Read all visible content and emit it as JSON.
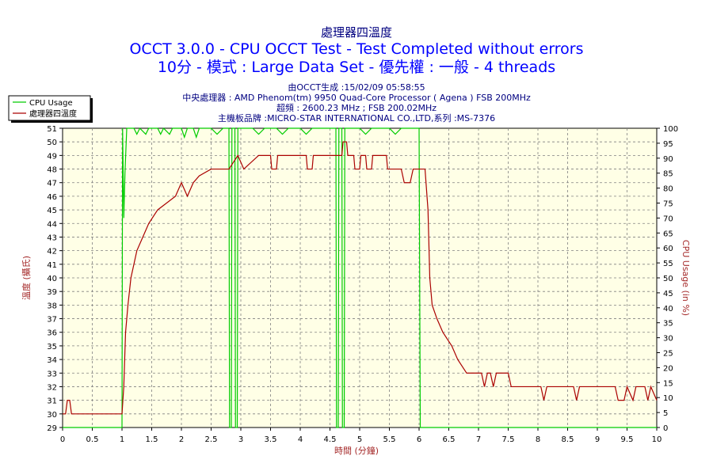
{
  "header": {
    "line1": "處理器四溫度",
    "line2": "OCCT 3.0.0 - CPU OCCT Test - Test Completed without errors",
    "line3": "10分 - 模式 : Large Data Set - 優先權 : 一般 - 4 threads",
    "info1": "由OCCT生成 :15/02/09 05:58:55",
    "info2": "中央處理器 : AMD Phenom(tm) 9950 Quad-Core Processor ( Agena ) FSB 200MHz",
    "info3": "超頻 : 2600.23 MHz ; FSB 200.02MHz",
    "info4": "主機板品牌 :MICRO-STAR INTERNATIONAL CO.,LTD,系列 :MS-7376"
  },
  "chart_data": {
    "type": "line",
    "xlabel": "時間 (分鐘)",
    "ylabel_left": "溫度 (攝氏)",
    "ylabel_right": "CPU Usage (in %)",
    "xlim": [
      0,
      10
    ],
    "ylim_left": [
      29,
      51
    ],
    "ylim_right": [
      0,
      100
    ],
    "x_ticks": [
      "0",
      "0.5",
      "1",
      "1.5",
      "2",
      "2.5",
      "3",
      "3.5",
      "4",
      "4.5",
      "5",
      "5.5",
      "6",
      "6.5",
      "7",
      "7.5",
      "8",
      "8.5",
      "9",
      "9.5",
      "10"
    ],
    "y_ticks_left": [
      "29",
      "30",
      "31",
      "32",
      "33",
      "34",
      "35",
      "36",
      "37",
      "38",
      "39",
      "40",
      "41",
      "42",
      "43",
      "44",
      "45",
      "46",
      "47",
      "48",
      "49",
      "50",
      "51"
    ],
    "y_ticks_right": [
      "0",
      "5",
      "10",
      "15",
      "20",
      "25",
      "30",
      "35",
      "40",
      "45",
      "50",
      "55",
      "60",
      "65",
      "70",
      "75",
      "80",
      "85",
      "90",
      "95",
      "100"
    ],
    "grid": true,
    "legend_position": "top-left",
    "series": [
      {
        "name": "CPU Usage",
        "axis": "right",
        "color": "#00cc00",
        "points": [
          [
            0,
            0
          ],
          [
            1.0,
            0
          ],
          [
            1.01,
            100
          ],
          [
            1.03,
            70
          ],
          [
            1.05,
            85
          ],
          [
            1.08,
            100
          ],
          [
            1.2,
            100
          ],
          [
            1.25,
            98
          ],
          [
            1.3,
            100
          ],
          [
            1.4,
            98
          ],
          [
            1.45,
            100
          ],
          [
            1.6,
            100
          ],
          [
            1.65,
            98
          ],
          [
            1.7,
            100
          ],
          [
            1.8,
            98
          ],
          [
            1.85,
            100
          ],
          [
            2.0,
            100
          ],
          [
            2.05,
            97
          ],
          [
            2.1,
            100
          ],
          [
            2.2,
            100
          ],
          [
            2.25,
            97
          ],
          [
            2.3,
            100
          ],
          [
            2.5,
            100
          ],
          [
            2.6,
            98
          ],
          [
            2.7,
            100
          ],
          [
            2.8,
            100
          ],
          [
            2.81,
            0
          ],
          [
            2.84,
            0
          ],
          [
            2.85,
            100
          ],
          [
            2.9,
            100
          ],
          [
            2.91,
            0
          ],
          [
            2.94,
            0
          ],
          [
            2.95,
            100
          ],
          [
            3.2,
            100
          ],
          [
            3.3,
            98
          ],
          [
            3.4,
            100
          ],
          [
            3.6,
            100
          ],
          [
            3.7,
            98
          ],
          [
            3.8,
            100
          ],
          [
            4.0,
            100
          ],
          [
            4.1,
            98
          ],
          [
            4.2,
            100
          ],
          [
            4.6,
            100
          ],
          [
            4.61,
            0
          ],
          [
            4.64,
            0
          ],
          [
            4.65,
            100
          ],
          [
            4.7,
            100
          ],
          [
            4.71,
            0
          ],
          [
            4.74,
            0
          ],
          [
            4.75,
            100
          ],
          [
            5.0,
            100
          ],
          [
            5.1,
            98
          ],
          [
            5.2,
            100
          ],
          [
            5.5,
            100
          ],
          [
            5.6,
            98
          ],
          [
            5.7,
            100
          ],
          [
            6.0,
            100
          ],
          [
            6.02,
            0
          ],
          [
            6.05,
            0
          ],
          [
            10,
            0
          ]
        ]
      },
      {
        "name": "處理器四溫度",
        "axis": "left",
        "color": "#aa0000",
        "points": [
          [
            0,
            30
          ],
          [
            0.05,
            30
          ],
          [
            0.08,
            31
          ],
          [
            0.12,
            31
          ],
          [
            0.15,
            30
          ],
          [
            1.0,
            30
          ],
          [
            1.03,
            32
          ],
          [
            1.06,
            36
          ],
          [
            1.1,
            38
          ],
          [
            1.15,
            40
          ],
          [
            1.2,
            41
          ],
          [
            1.25,
            42
          ],
          [
            1.35,
            43
          ],
          [
            1.45,
            44
          ],
          [
            1.6,
            45
          ],
          [
            1.9,
            46
          ],
          [
            2.0,
            47
          ],
          [
            2.1,
            46
          ],
          [
            2.2,
            47
          ],
          [
            2.3,
            47.5
          ],
          [
            2.5,
            48
          ],
          [
            2.8,
            48
          ],
          [
            2.95,
            49
          ],
          [
            3.05,
            48
          ],
          [
            3.3,
            49
          ],
          [
            3.5,
            49
          ],
          [
            3.52,
            48
          ],
          [
            3.6,
            48
          ],
          [
            3.62,
            49
          ],
          [
            4.1,
            49
          ],
          [
            4.12,
            48
          ],
          [
            4.2,
            48
          ],
          [
            4.22,
            49
          ],
          [
            4.7,
            49
          ],
          [
            4.72,
            50
          ],
          [
            4.78,
            50
          ],
          [
            4.8,
            49
          ],
          [
            4.9,
            49
          ],
          [
            4.92,
            48
          ],
          [
            5.0,
            48
          ],
          [
            5.02,
            49
          ],
          [
            5.1,
            49
          ],
          [
            5.12,
            48
          ],
          [
            5.2,
            48
          ],
          [
            5.22,
            49
          ],
          [
            5.45,
            49
          ],
          [
            5.47,
            48
          ],
          [
            5.55,
            48
          ],
          [
            5.57,
            48
          ],
          [
            5.7,
            48
          ],
          [
            5.75,
            47
          ],
          [
            5.85,
            47
          ],
          [
            5.9,
            48
          ],
          [
            6.1,
            48
          ],
          [
            6.15,
            45
          ],
          [
            6.18,
            40
          ],
          [
            6.22,
            38
          ],
          [
            6.3,
            37
          ],
          [
            6.4,
            36
          ],
          [
            6.55,
            35
          ],
          [
            6.65,
            34
          ],
          [
            6.8,
            33
          ],
          [
            7.05,
            33
          ],
          [
            7.1,
            32
          ],
          [
            7.15,
            33
          ],
          [
            7.2,
            33
          ],
          [
            7.25,
            32
          ],
          [
            7.3,
            33
          ],
          [
            7.5,
            33
          ],
          [
            7.55,
            32
          ],
          [
            8.05,
            32
          ],
          [
            8.1,
            31
          ],
          [
            8.15,
            32
          ],
          [
            8.6,
            32
          ],
          [
            8.65,
            31
          ],
          [
            8.7,
            32
          ],
          [
            9.3,
            32
          ],
          [
            9.35,
            31
          ],
          [
            9.45,
            31
          ],
          [
            9.5,
            32
          ],
          [
            9.6,
            31
          ],
          [
            9.65,
            32
          ],
          [
            9.8,
            32
          ],
          [
            9.85,
            31
          ],
          [
            9.9,
            32
          ],
          [
            10,
            31
          ]
        ]
      }
    ]
  }
}
